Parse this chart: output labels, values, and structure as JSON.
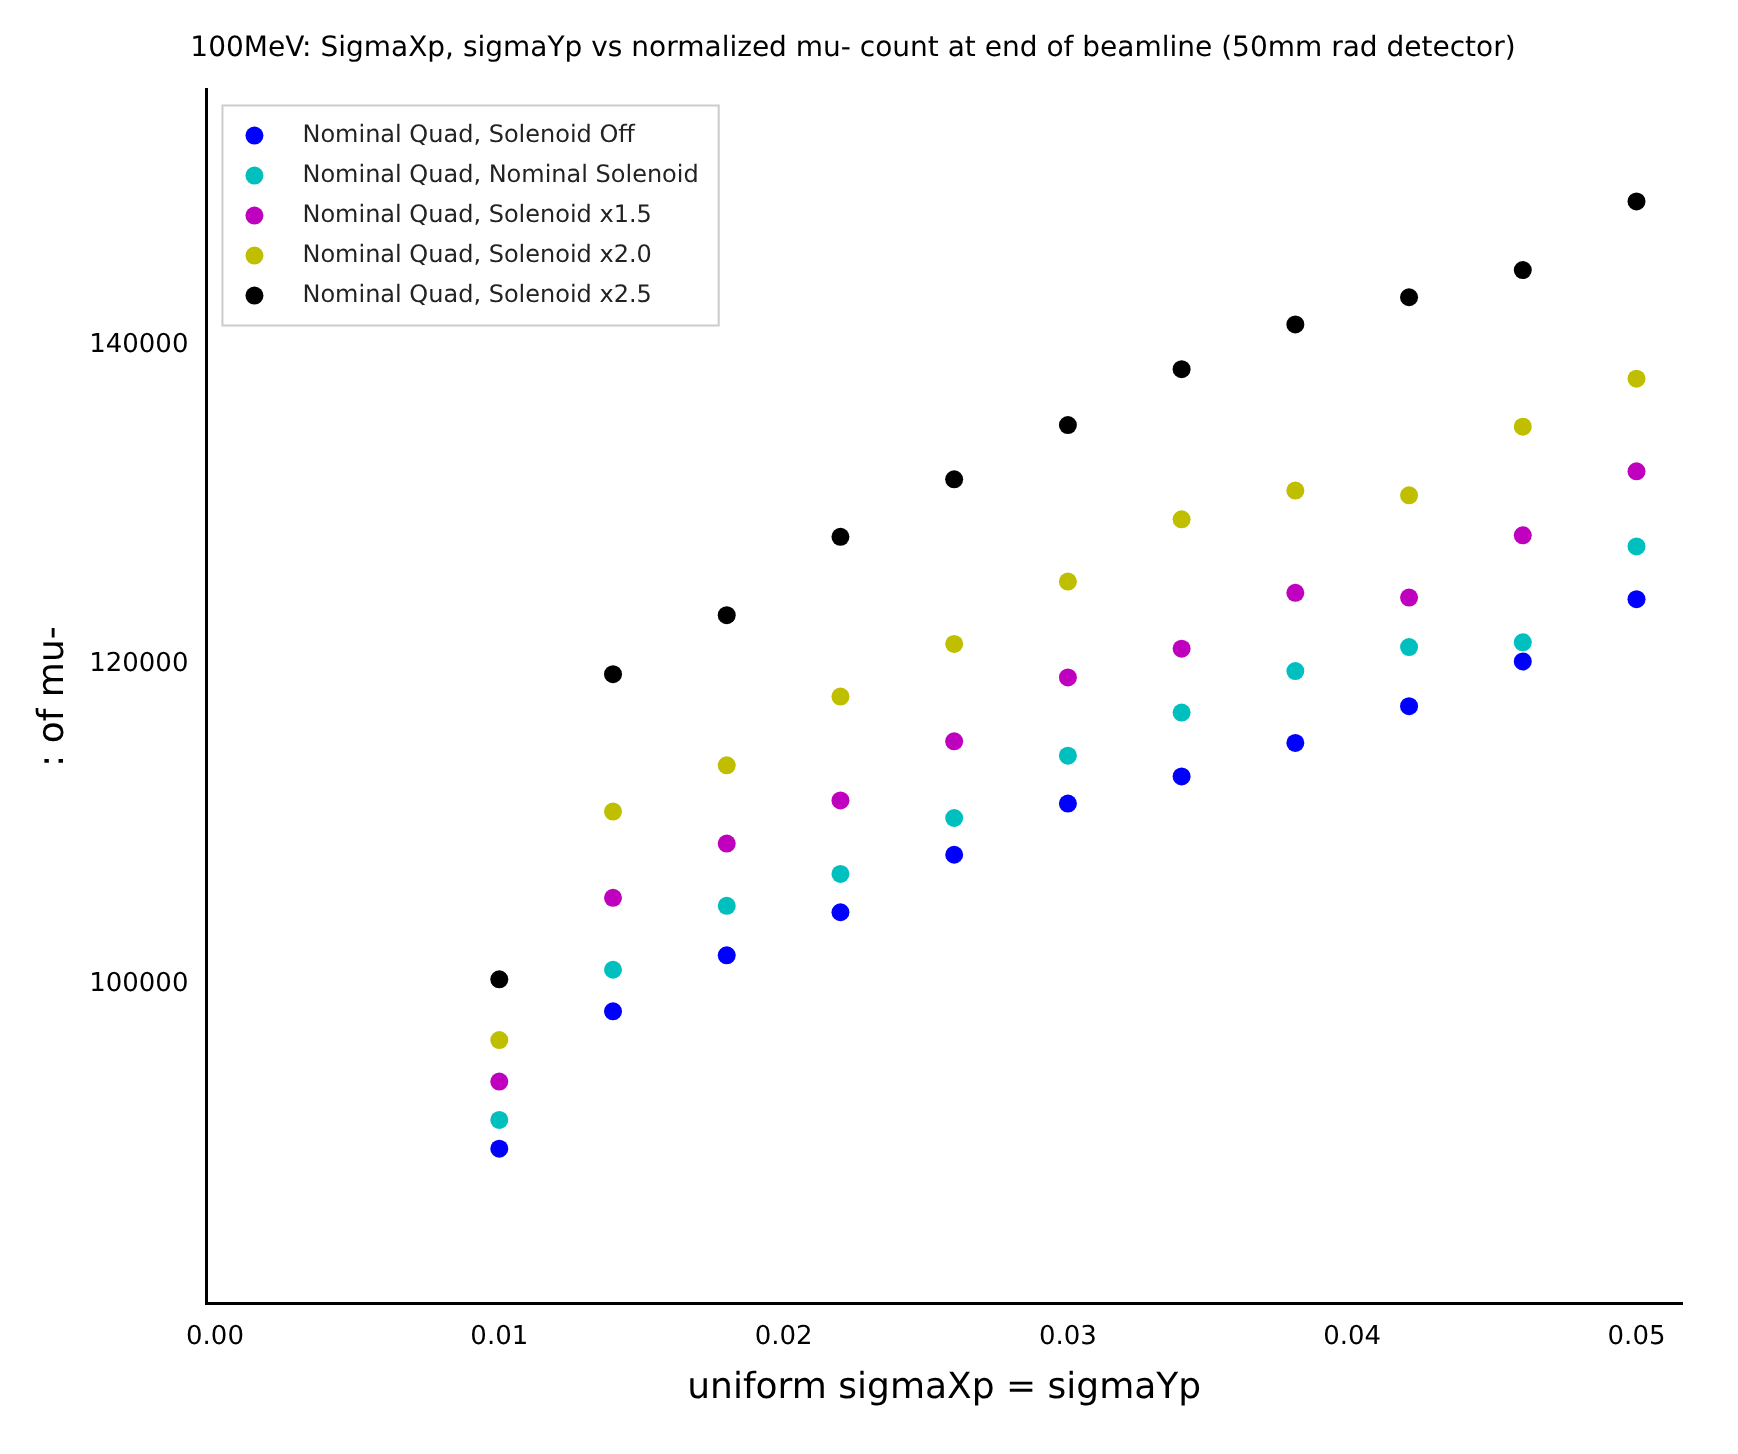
{
  "chart_data": {
    "type": "scatter",
    "title": "100MeV: SigmaXp, sigmaYp vs normalized mu- count at end of beamline (50mm rad detector)",
    "xlabel": "uniform sigmaXp = sigmaYp",
    "ylabel": ": of mu-",
    "x": [
      0.01,
      0.014,
      0.018,
      0.022,
      0.026,
      0.03,
      0.034,
      0.038,
      0.042,
      0.046,
      0.05
    ],
    "series": [
      {
        "name": "Nominal Quad, Solenoid Off",
        "color": "#0000ff",
        "values": [
          89700,
          98300,
          101800,
          104500,
          108100,
          111300,
          113000,
          115100,
          117400,
          120200,
          124100
        ]
      },
      {
        "name": "Nominal Quad, Nominal Solenoid",
        "color": "#00bfbf",
        "values": [
          91500,
          100900,
          104900,
          106900,
          110400,
          114300,
          117000,
          119600,
          121100,
          121400,
          127400
        ]
      },
      {
        "name": "Nominal Quad, Solenoid x1.5",
        "color": "#bf00bf",
        "values": [
          93900,
          105400,
          108800,
          111500,
          115200,
          119200,
          121000,
          124500,
          124200,
          128100,
          132100
        ]
      },
      {
        "name": "Nominal Quad, Solenoid x2.0",
        "color": "#bfbf00",
        "values": [
          96500,
          110800,
          113700,
          118000,
          121300,
          125200,
          129100,
          130900,
          130600,
          134900,
          137900
        ]
      },
      {
        "name": "Nominal Quad, Solenoid x2.5",
        "color": "#000000",
        "values": [
          100300,
          119400,
          123100,
          128000,
          131600,
          135000,
          138500,
          141300,
          143000,
          144700,
          149000
        ]
      }
    ],
    "xlim": [
      -0.0003,
      0.0516
    ],
    "ylim": [
      80000,
      156000
    ],
    "xticks": [
      {
        "value": 0,
        "label": "0.00"
      },
      {
        "value": 0.01,
        "label": "0.01"
      },
      {
        "value": 0.02,
        "label": "0.02"
      },
      {
        "value": 0.03,
        "label": "0.03"
      },
      {
        "value": 0.04,
        "label": "0.04"
      },
      {
        "value": 0.05,
        "label": "0.05"
      }
    ],
    "yticks": [
      100000,
      120000,
      140000
    ],
    "grid": false,
    "legend": "top left",
    "marker": "circle"
  }
}
